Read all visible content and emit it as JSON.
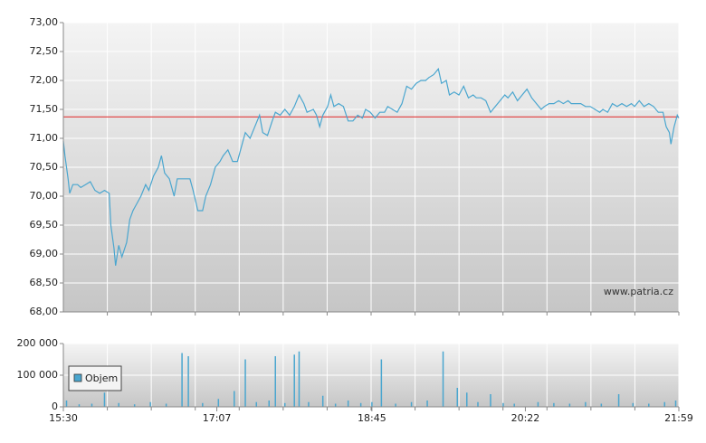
{
  "chart_data": [
    {
      "type": "line",
      "color": "#4aa6cf",
      "watermark": "www.patria.cz",
      "reference_line": {
        "value": 71.37,
        "color": "#e03a3a"
      },
      "xlim": [
        "15:30",
        "21:59"
      ],
      "ylim": [
        68,
        73
      ],
      "yticks": [
        {
          "value": 68,
          "label": "68,00"
        },
        {
          "value": 68.5,
          "label": "68,50"
        },
        {
          "value": 69,
          "label": "69,00"
        },
        {
          "value": 69.5,
          "label": "69,50"
        },
        {
          "value": 70,
          "label": "70,00"
        },
        {
          "value": 70.5,
          "label": "70,50"
        },
        {
          "value": 71,
          "label": "71,00"
        },
        {
          "value": 71.5,
          "label": "71,50"
        },
        {
          "value": 72,
          "label": "72,00"
        },
        {
          "value": 72.5,
          "label": "72,50"
        },
        {
          "value": 73,
          "label": "73,00"
        }
      ],
      "grid": true,
      "x": [
        "15:30",
        "15:31",
        "15:33",
        "15:34",
        "15:36",
        "15:39",
        "15:41",
        "15:44",
        "15:47",
        "15:50",
        "15:53",
        "15:56",
        "15:59",
        "16:00",
        "16:02",
        "16:03",
        "16:05",
        "16:07",
        "16:10",
        "16:12",
        "16:14",
        "16:16",
        "16:19",
        "16:22",
        "16:24",
        "16:27",
        "16:30",
        "16:32",
        "16:34",
        "16:37",
        "16:40",
        "16:42",
        "16:44",
        "16:47",
        "16:50",
        "16:52",
        "16:55",
        "16:58",
        "17:00",
        "17:03",
        "17:06",
        "17:09",
        "17:11",
        "17:14",
        "17:17",
        "17:20",
        "17:22",
        "17:25",
        "17:28",
        "17:31",
        "17:34",
        "17:36",
        "17:39",
        "17:42",
        "17:44",
        "17:47",
        "17:50",
        "17:53",
        "17:56",
        "17:59",
        "18:02",
        "18:04",
        "18:08",
        "18:10",
        "18:12",
        "18:14",
        "18:17",
        "18:19",
        "18:21",
        "18:24",
        "18:27",
        "18:30",
        "18:33",
        "18:36",
        "18:39",
        "18:41",
        "18:44",
        "18:47",
        "18:50",
        "18:53",
        "18:55",
        "18:58",
        "19:01",
        "19:04",
        "19:07",
        "19:10",
        "19:13",
        "19:16",
        "19:19",
        "19:21",
        "19:24",
        "19:27",
        "19:29",
        "19:32",
        "19:34",
        "19:37",
        "19:40",
        "19:43",
        "19:46",
        "19:49",
        "19:51",
        "19:54",
        "19:57",
        "20:00",
        "20:03",
        "20:06",
        "20:09",
        "20:11",
        "20:14",
        "20:17",
        "20:20",
        "20:23",
        "20:26",
        "20:29",
        "20:32",
        "20:34",
        "20:37",
        "20:40",
        "20:43",
        "20:46",
        "20:49",
        "20:51",
        "20:54",
        "20:57",
        "21:00",
        "21:03",
        "21:06",
        "21:09",
        "21:11",
        "21:14",
        "21:17",
        "21:20",
        "21:23",
        "21:26",
        "21:29",
        "21:31",
        "21:34",
        "21:37",
        "21:40",
        "21:43",
        "21:46",
        "21:49",
        "21:51",
        "21:53",
        "21:54",
        "21:56",
        "21:58",
        "21:59"
      ],
      "values": [
        70.95,
        70.7,
        70.3,
        70.05,
        70.2,
        70.2,
        70.15,
        70.2,
        70.25,
        70.1,
        70.05,
        70.1,
        70.05,
        69.5,
        69.1,
        68.8,
        69.15,
        68.95,
        69.2,
        69.6,
        69.75,
        69.85,
        70.0,
        70.2,
        70.1,
        70.35,
        70.5,
        70.7,
        70.4,
        70.3,
        70.0,
        70.3,
        70.3,
        70.3,
        70.3,
        70.1,
        69.75,
        69.75,
        70.0,
        70.2,
        70.5,
        70.6,
        70.7,
        70.8,
        70.6,
        70.6,
        70.8,
        71.1,
        71.0,
        71.2,
        71.4,
        71.1,
        71.05,
        71.3,
        71.45,
        71.4,
        71.5,
        71.4,
        71.55,
        71.75,
        71.6,
        71.45,
        71.5,
        71.4,
        71.2,
        71.4,
        71.55,
        71.75,
        71.55,
        71.6,
        71.55,
        71.3,
        71.3,
        71.4,
        71.35,
        71.5,
        71.45,
        71.35,
        71.45,
        71.45,
        71.55,
        71.5,
        71.45,
        71.6,
        71.9,
        71.85,
        71.95,
        72.0,
        72.0,
        72.05,
        72.1,
        72.2,
        71.95,
        72.0,
        71.75,
        71.8,
        71.75,
        71.9,
        71.7,
        71.75,
        71.7,
        71.7,
        71.65,
        71.45,
        71.55,
        71.65,
        71.75,
        71.7,
        71.8,
        71.65,
        71.75,
        71.85,
        71.7,
        71.6,
        71.5,
        71.55,
        71.6,
        71.6,
        71.65,
        71.6,
        71.65,
        71.6,
        71.6,
        71.6,
        71.55,
        71.55,
        71.5,
        71.45,
        71.5,
        71.45,
        71.6,
        71.55,
        71.6,
        71.55,
        71.6,
        71.55,
        71.65,
        71.55,
        71.6,
        71.55,
        71.45,
        71.45,
        71.2,
        71.1,
        70.9,
        71.2,
        71.4,
        71.35
      ]
    },
    {
      "type": "bar",
      "xlim": [
        "15:30",
        "21:59"
      ],
      "xticks": [
        "15:30",
        "17:07",
        "18:45",
        "20:22",
        "21:59"
      ],
      "ylim": [
        0,
        200000
      ],
      "yticks": [
        0,
        {
          "value": 100000,
          "label": "100 000"
        },
        {
          "value": 200000,
          "label": "200 000"
        }
      ],
      "grid": true,
      "x": [
        "15:32",
        "15:40",
        "15:48",
        "15:56",
        "16:05",
        "16:15",
        "16:25",
        "16:35",
        "16:45",
        "16:49",
        "16:58",
        "17:08",
        "17:18",
        "17:25",
        "17:32",
        "17:40",
        "17:44",
        "17:50",
        "17:56",
        "17:59",
        "18:05",
        "18:14",
        "18:22",
        "18:30",
        "18:38",
        "18:45",
        "18:51",
        "19:00",
        "19:10",
        "19:20",
        "19:30",
        "19:39",
        "19:45",
        "19:52",
        "20:00",
        "20:08",
        "20:15",
        "20:30",
        "20:40",
        "20:50",
        "21:00",
        "21:10",
        "21:21",
        "21:30",
        "21:40",
        "21:50",
        "21:57"
      ],
      "series": [
        {
          "name": "Objem",
          "color": "#4aa6cf",
          "values": [
            20000,
            8000,
            10000,
            45000,
            12000,
            8000,
            15000,
            10000,
            170000,
            160000,
            12000,
            25000,
            50000,
            150000,
            15000,
            20000,
            160000,
            12000,
            165000,
            175000,
            15000,
            35000,
            10000,
            20000,
            12000,
            15000,
            150000,
            10000,
            15000,
            20000,
            175000,
            60000,
            45000,
            15000,
            40000,
            12000,
            10000,
            15000,
            12000,
            10000,
            15000,
            10000,
            40000,
            12000,
            10000,
            15000,
            20000
          ]
        }
      ]
    }
  ]
}
